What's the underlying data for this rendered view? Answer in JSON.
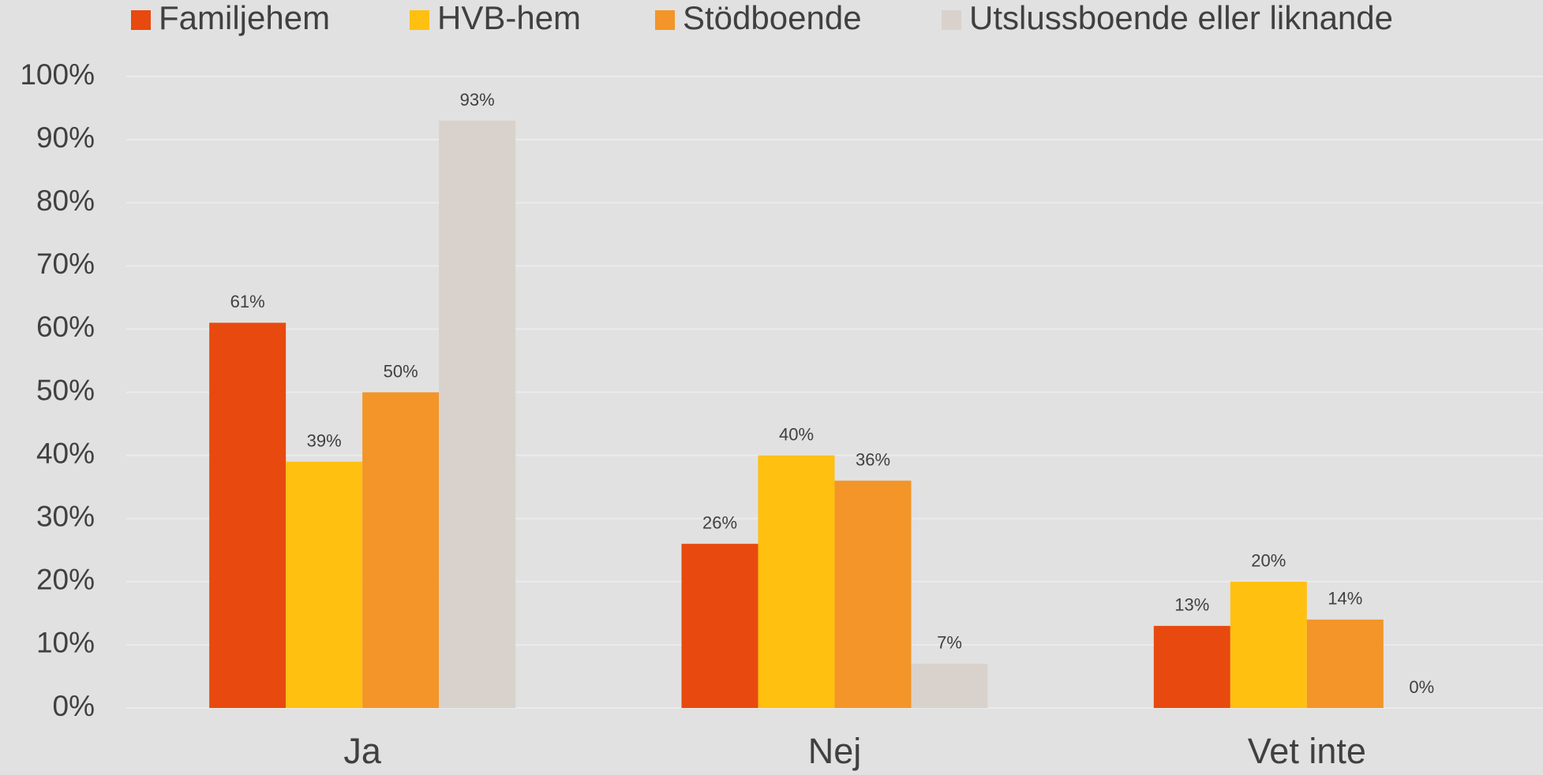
{
  "chart_data": {
    "type": "bar",
    "categories": [
      "Ja",
      "Nej",
      "Vet inte"
    ],
    "series": [
      {
        "name": "Familjehem",
        "color": "#e8490f",
        "values": [
          61,
          26,
          13
        ],
        "value_labels": [
          "61%",
          "26%",
          "13%"
        ]
      },
      {
        "name": "HVB-hem",
        "color": "#ffc010",
        "values": [
          39,
          40,
          20
        ],
        "value_labels": [
          "39%",
          "40%",
          "20%"
        ]
      },
      {
        "name": "Stödboende",
        "color": "#f39528",
        "values": [
          50,
          36,
          14
        ],
        "value_labels": [
          "50%",
          "36%",
          "14%"
        ]
      },
      {
        "name": "Utslussboende eller liknande",
        "color": "#d9d2cc",
        "values": [
          93,
          7,
          0
        ],
        "value_labels": [
          "93%",
          "7%",
          "0%"
        ]
      }
    ],
    "ylim": [
      0,
      100
    ],
    "yticks": [
      {
        "value": 0,
        "label": "0%"
      },
      {
        "value": 10,
        "label": "10%"
      },
      {
        "value": 20,
        "label": "20%"
      },
      {
        "value": 30,
        "label": "30%"
      },
      {
        "value": 40,
        "label": "40%"
      },
      {
        "value": 50,
        "label": "50%"
      },
      {
        "value": 60,
        "label": "60%"
      },
      {
        "value": 70,
        "label": "70%"
      },
      {
        "value": 80,
        "label": "80%"
      },
      {
        "value": 90,
        "label": "90%"
      },
      {
        "value": 100,
        "label": "100%"
      }
    ],
    "grid": true,
    "legend": "top"
  }
}
